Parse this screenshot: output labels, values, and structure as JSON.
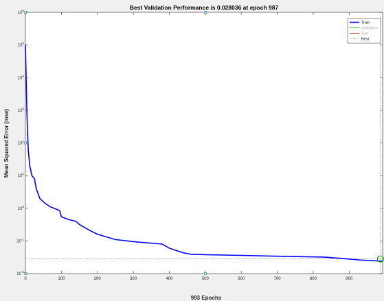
{
  "chart_data": {
    "type": "line",
    "title": "Best Validation Performance is 0.028036 at epoch 987",
    "xlabel": "993 Epochs",
    "ylabel": "Mean Squared Error  (mse)",
    "xlim": [
      0,
      993
    ],
    "ylim_log10": [
      -2,
      6
    ],
    "y_scale": "log",
    "x_ticks": [
      0,
      100,
      200,
      300,
      400,
      500,
      600,
      700,
      800,
      900
    ],
    "x_tick_labels": [
      "0",
      "100",
      "200",
      "300",
      "400",
      "500",
      "600",
      "700",
      "800",
      "900"
    ],
    "y_ticks_log10": [
      -2,
      -1,
      0,
      1,
      2,
      3,
      4,
      5,
      6
    ],
    "y_tick_labels": [
      {
        "base": "10",
        "exp": "-2"
      },
      {
        "base": "10",
        "exp": "-1"
      },
      {
        "base": "10",
        "exp": "0"
      },
      {
        "base": "10",
        "exp": "1"
      },
      {
        "base": "10",
        "exp": "2"
      },
      {
        "base": "10",
        "exp": "3"
      },
      {
        "base": "10",
        "exp": "4"
      },
      {
        "base": "10",
        "exp": "5"
      },
      {
        "base": "10",
        "exp": "6"
      }
    ],
    "grid": false,
    "legend_position": "top-right",
    "series": [
      {
        "name": "Train",
        "color": "#0000ff",
        "x": [
          0,
          2,
          4,
          6,
          8,
          12,
          18,
          25,
          30,
          40,
          55,
          70,
          95,
          100,
          120,
          140,
          150,
          175,
          200,
          250,
          300,
          380,
          400,
          410,
          440,
          460,
          500,
          600,
          700,
          830,
          880,
          930,
          960,
          993
        ],
        "y": [
          100000,
          10000,
          1000,
          200,
          60,
          20,
          10,
          8,
          4,
          2,
          1.4,
          1.1,
          0.85,
          0.55,
          0.45,
          0.4,
          0.32,
          0.22,
          0.16,
          0.11,
          0.095,
          0.08,
          0.06,
          0.055,
          0.043,
          0.039,
          0.038,
          0.036,
          0.034,
          0.032,
          0.029,
          0.026,
          0.025,
          0.024
        ]
      },
      {
        "name": "Validation",
        "color": "#00cc00",
        "x": [],
        "y": []
      },
      {
        "name": "Test",
        "color": "#ff0000",
        "x": [],
        "y": []
      }
    ],
    "best": {
      "label": "Best",
      "epoch": 987,
      "value": 0.028036,
      "color": "#00aa00"
    },
    "markers": [
      {
        "x": 0,
        "y": 1000000
      },
      {
        "x": 0,
        "y": 100
      },
      {
        "x": 0,
        "y": 0.01
      },
      {
        "x": 500,
        "y": 1000000
      },
      {
        "x": 500,
        "y": 0.01
      }
    ]
  }
}
